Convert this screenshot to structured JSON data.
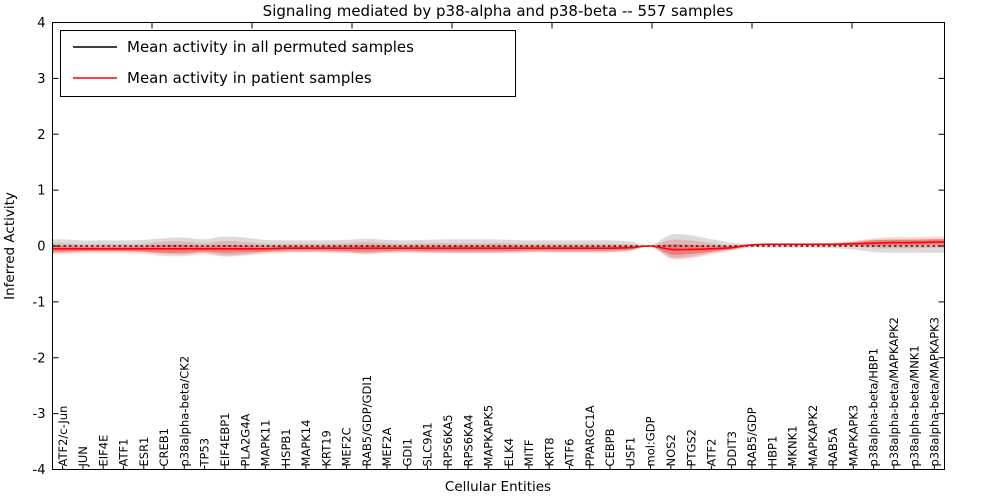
{
  "title": "Signaling mediated by p38-alpha and p38-beta -- 557 samples",
  "legend": {
    "items": [
      {
        "label": "Mean activity in all permuted samples",
        "color": "#000000"
      },
      {
        "label": "Mean activity in patient samples",
        "color": "#ff0000"
      }
    ]
  },
  "chart_data": {
    "type": "line",
    "title": "Signaling mediated by p38-alpha and p38-beta -- 557 samples",
    "xlabel": "Cellular Entities",
    "ylabel": "Inferred Activity",
    "ylim": [
      -4,
      4
    ],
    "yticks": [
      4,
      3,
      2,
      1,
      0,
      -1,
      -2,
      -3,
      -4
    ],
    "grid": false,
    "legend_position": "upper left",
    "categories": [
      "ATF2/c-Jun",
      "JUN",
      "EIF4E",
      "ATF1",
      "ESR1",
      "CREB1",
      "p38alpha-beta/CK2",
      "TP53",
      "EIF4EBP1",
      "PLA2G4A",
      "MAPK11",
      "HSPB1",
      "MAPK14",
      "KRT19",
      "MEF2C",
      "RAB5/GDP/GDI1",
      "MEF2A",
      "GDI1",
      "SLC9A1",
      "RPS6KA5",
      "RPS6KA4",
      "MAPKAPK5",
      "ELK4",
      "MITF",
      "KRT8",
      "ATF6",
      "PPARGC1A",
      "CEBPB",
      "USF1",
      "mol:GDP",
      "NOS2",
      "PTGS2",
      "ATF2",
      "DDIT3",
      "RAB5/GDP",
      "HBP1",
      "MKNK1",
      "MAPKAPK2",
      "RAB5A",
      "MAPKAPK3",
      "p38alpha-beta/HBP1",
      "p38alpha-beta/MAPKAPK2",
      "p38alpha-beta/MNK1",
      "p38alpha-beta/MAPKAPK3"
    ],
    "series": [
      {
        "name": "Mean activity in all permuted samples",
        "color": "#000000",
        "style": "dashed",
        "values": [
          0,
          0,
          0,
          0,
          0,
          0,
          0,
          0,
          0,
          0,
          0,
          0,
          0,
          0,
          0,
          0,
          0,
          0,
          0,
          0,
          0,
          0,
          0,
          0,
          0,
          0,
          0,
          0,
          0,
          0,
          0,
          0,
          0,
          0,
          0,
          0,
          0,
          0,
          0,
          0,
          0,
          0,
          0,
          0
        ]
      },
      {
        "name": "Mean activity in patient samples",
        "color": "#ff0000",
        "style": "solid",
        "values": [
          -0.05,
          -0.05,
          -0.05,
          -0.05,
          -0.05,
          -0.05,
          -0.05,
          -0.05,
          -0.05,
          -0.05,
          -0.05,
          -0.04,
          -0.04,
          -0.04,
          -0.04,
          -0.04,
          -0.04,
          -0.04,
          -0.04,
          -0.04,
          -0.04,
          -0.04,
          -0.04,
          -0.04,
          -0.04,
          -0.04,
          -0.04,
          -0.04,
          -0.03,
          0.0,
          -0.06,
          -0.06,
          -0.05,
          -0.03,
          0.02,
          0.03,
          0.03,
          0.03,
          0.03,
          0.04,
          0.05,
          0.06,
          0.06,
          0.07
        ]
      }
    ],
    "bands": [
      {
        "name": "permuted-spread",
        "color": "#888888",
        "opacity": 0.3,
        "center_series": 0,
        "half_widths": [
          0.12,
          0.1,
          0.1,
          0.1,
          0.11,
          0.14,
          0.15,
          0.12,
          0.17,
          0.15,
          0.11,
          0.1,
          0.1,
          0.1,
          0.11,
          0.13,
          0.11,
          0.1,
          0.11,
          0.12,
          0.12,
          0.12,
          0.11,
          0.1,
          0.1,
          0.1,
          0.1,
          0.1,
          0.08,
          0.01,
          0.2,
          0.19,
          0.12,
          0.06,
          0.03,
          0.03,
          0.03,
          0.03,
          0.04,
          0.06,
          0.11,
          0.12,
          0.12,
          0.12
        ]
      },
      {
        "name": "patient-spread",
        "color": "#ff0000",
        "opacity": 0.16,
        "center_series": 1,
        "half_widths": [
          0.1,
          0.08,
          0.08,
          0.08,
          0.09,
          0.13,
          0.13,
          0.1,
          0.14,
          0.12,
          0.09,
          0.08,
          0.08,
          0.08,
          0.09,
          0.11,
          0.09,
          0.08,
          0.09,
          0.09,
          0.09,
          0.09,
          0.09,
          0.08,
          0.08,
          0.08,
          0.08,
          0.08,
          0.06,
          0.01,
          0.17,
          0.16,
          0.1,
          0.05,
          0.02,
          0.02,
          0.02,
          0.02,
          0.03,
          0.05,
          0.09,
          0.1,
          0.1,
          0.1
        ]
      },
      {
        "name": "patient-spread-core",
        "color": "#ff0000",
        "opacity": 0.3,
        "center_series": 1,
        "half_widths": [
          0.05,
          0.04,
          0.04,
          0.04,
          0.05,
          0.07,
          0.07,
          0.05,
          0.07,
          0.06,
          0.05,
          0.04,
          0.04,
          0.04,
          0.05,
          0.06,
          0.05,
          0.04,
          0.05,
          0.05,
          0.05,
          0.05,
          0.05,
          0.04,
          0.04,
          0.04,
          0.04,
          0.04,
          0.03,
          0.005,
          0.09,
          0.08,
          0.05,
          0.03,
          0.01,
          0.01,
          0.01,
          0.01,
          0.015,
          0.03,
          0.05,
          0.05,
          0.05,
          0.05
        ]
      }
    ]
  }
}
